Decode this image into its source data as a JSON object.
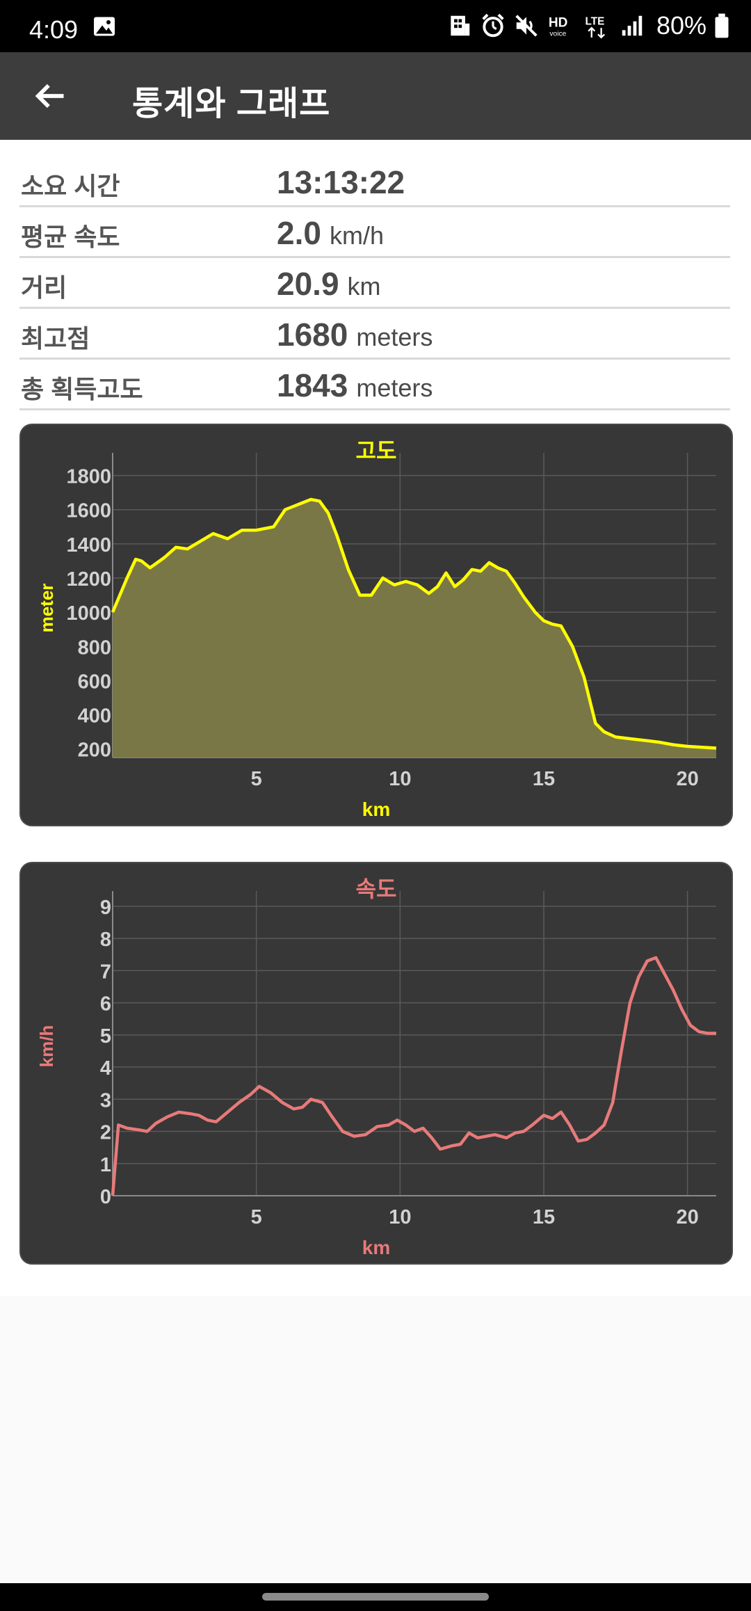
{
  "status_bar": {
    "time": "4:09",
    "battery": "80%",
    "icons": [
      "image-icon",
      "building-icon",
      "alarm-icon",
      "mute-icon",
      "hd-voice-icon",
      "lte-icon",
      "signal-icon",
      "battery-icon"
    ]
  },
  "app_bar": {
    "back_icon": "arrow-left-icon",
    "title": "통계와 그래프"
  },
  "stats": [
    {
      "label": "소요 시간",
      "value": "13:13:22",
      "unit": ""
    },
    {
      "label": "평균 속도",
      "value": "2.0",
      "unit": "km/h"
    },
    {
      "label": "거리",
      "value": "20.9",
      "unit": "km"
    },
    {
      "label": "최고점",
      "value": "1680",
      "unit": "meters"
    },
    {
      "label": "총 획득고도",
      "value": "1843",
      "unit": "meters"
    }
  ],
  "chart_data": [
    {
      "type": "area",
      "title": "고도",
      "xlabel": "km",
      "ylabel": "meter",
      "color": "#ffff00",
      "fill": "#7a7747",
      "xlim": [
        0,
        21
      ],
      "ylim": [
        150,
        1900
      ],
      "xticks": [
        5,
        10,
        15,
        20
      ],
      "yticks": [
        200,
        400,
        600,
        800,
        1000,
        1200,
        1400,
        1600,
        1800
      ],
      "grid": true,
      "x": [
        0,
        0.5,
        0.8,
        1.0,
        1.3,
        1.8,
        2.2,
        2.6,
        3.0,
        3.5,
        4.0,
        4.5,
        5.0,
        5.6,
        6.0,
        6.3,
        6.6,
        6.9,
        7.2,
        7.5,
        7.8,
        8.2,
        8.6,
        9.0,
        9.4,
        9.8,
        10.2,
        10.6,
        11.0,
        11.3,
        11.6,
        11.9,
        12.2,
        12.5,
        12.8,
        13.1,
        13.4,
        13.7,
        14.0,
        14.3,
        14.7,
        15.0,
        15.3,
        15.6,
        16.0,
        16.4,
        16.8,
        17.1,
        17.5,
        18.0,
        18.5,
        19.0,
        19.5,
        20.0,
        20.5,
        21.0
      ],
      "values": [
        1000,
        1200,
        1310,
        1300,
        1260,
        1320,
        1380,
        1370,
        1410,
        1460,
        1430,
        1480,
        1480,
        1500,
        1600,
        1620,
        1640,
        1660,
        1650,
        1580,
        1450,
        1250,
        1100,
        1100,
        1200,
        1160,
        1180,
        1160,
        1110,
        1150,
        1230,
        1150,
        1190,
        1250,
        1240,
        1290,
        1260,
        1240,
        1170,
        1090,
        1000,
        950,
        930,
        920,
        800,
        620,
        350,
        300,
        270,
        260,
        250,
        240,
        225,
        215,
        210,
        205
      ]
    },
    {
      "type": "line",
      "title": "속도",
      "xlabel": "km",
      "ylabel": "km/h",
      "color": "#e87a7a",
      "xlim": [
        0,
        21
      ],
      "ylim": [
        0,
        9.3
      ],
      "xticks": [
        5,
        10,
        15,
        20
      ],
      "yticks": [
        0,
        1,
        2,
        3,
        4,
        5,
        6,
        7,
        8,
        9
      ],
      "grid": true,
      "x": [
        0,
        0.2,
        0.5,
        0.9,
        1.2,
        1.5,
        1.9,
        2.3,
        2.7,
        3.0,
        3.3,
        3.6,
        4.0,
        4.4,
        4.8,
        5.1,
        5.5,
        5.9,
        6.3,
        6.6,
        6.9,
        7.3,
        7.6,
        8.0,
        8.4,
        8.8,
        9.2,
        9.6,
        9.9,
        10.2,
        10.5,
        10.8,
        11.1,
        11.4,
        11.8,
        12.1,
        12.4,
        12.7,
        13.0,
        13.3,
        13.7,
        14.0,
        14.3,
        14.6,
        15.0,
        15.3,
        15.6,
        15.9,
        16.2,
        16.5,
        16.8,
        17.1,
        17.4,
        17.7,
        18.0,
        18.3,
        18.6,
        18.9,
        19.2,
        19.5,
        19.8,
        20.1,
        20.4,
        20.7,
        21.0
      ],
      "values": [
        0,
        2.2,
        2.1,
        2.05,
        2.0,
        2.25,
        2.45,
        2.6,
        2.55,
        2.5,
        2.35,
        2.3,
        2.6,
        2.9,
        3.15,
        3.4,
        3.2,
        2.9,
        2.7,
        2.75,
        3.0,
        2.9,
        2.5,
        2.0,
        1.85,
        1.9,
        2.15,
        2.2,
        2.35,
        2.2,
        2.0,
        2.1,
        1.8,
        1.45,
        1.55,
        1.6,
        1.95,
        1.8,
        1.85,
        1.9,
        1.8,
        1.95,
        2.0,
        2.2,
        2.5,
        2.4,
        2.6,
        2.2,
        1.7,
        1.75,
        1.95,
        2.2,
        2.9,
        4.5,
        6.0,
        6.8,
        7.3,
        7.4,
        6.9,
        6.4,
        5.8,
        5.3,
        5.1,
        5.05,
        5.05
      ]
    }
  ],
  "nav_bar": {
    "handle": "gesture-handle"
  }
}
